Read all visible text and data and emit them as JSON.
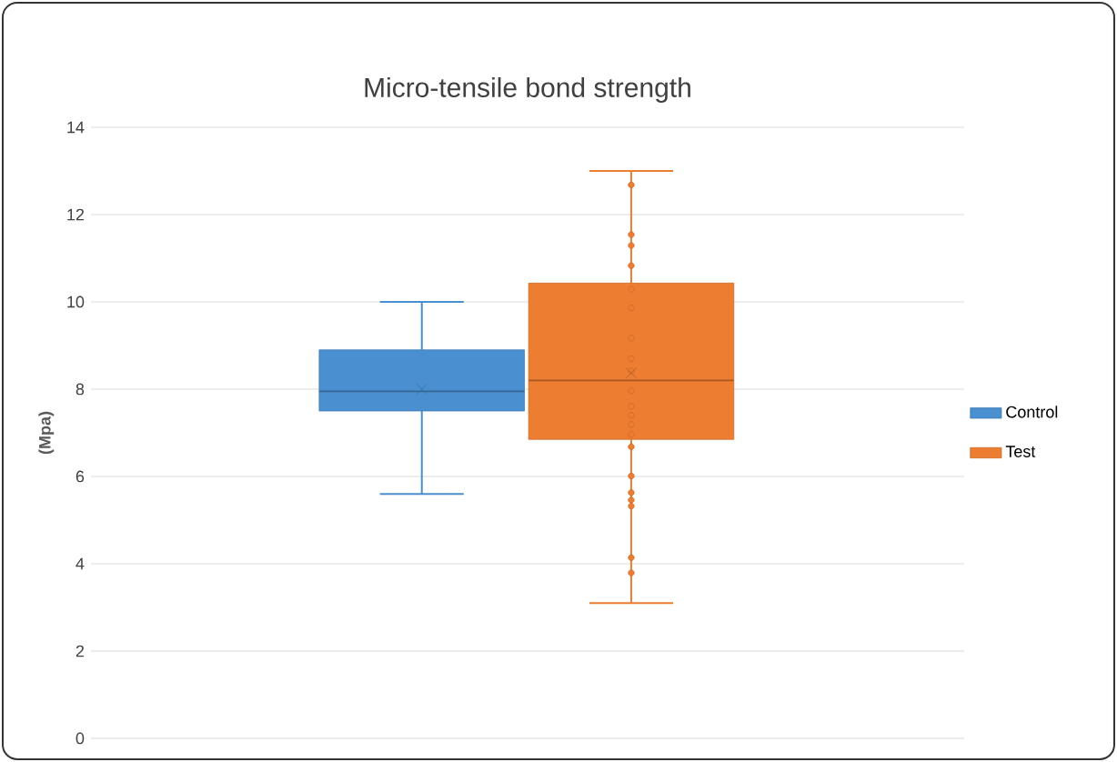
{
  "chart_data": {
    "type": "box",
    "title": "Micro-tensile bond strength",
    "ylabel": "(Mpa)",
    "categories": [
      null
    ],
    "ylim": [
      0,
      14
    ],
    "yticks": [
      0,
      2,
      4,
      6,
      8,
      10,
      12,
      14
    ],
    "grid": "y",
    "legend": "right",
    "tick_labels": "y",
    "series": [
      {
        "name": "Control",
        "color": "#4a8fd0",
        "boxes": [
          {
            "low": 5.6,
            "q1": 7.5,
            "median": 7.95,
            "q3": 8.9,
            "high": 10.0,
            "mean": 8.0
          }
        ]
      },
      {
        "name": "Test",
        "color": "#ed7d31",
        "boxes": [
          {
            "low": 3.1,
            "q1": 6.85,
            "median": 8.2,
            "q3": 10.43,
            "high": 13.0,
            "mean": 8.37,
            "outliers": [
              12.68,
              11.54,
              11.29,
              10.83,
              10.29,
              9.86,
              9.17,
              8.7,
              8.42,
              7.96,
              7.61,
              7.4,
              7.19,
              6.96,
              6.68,
              6.01,
              5.63,
              5.46,
              5.32,
              4.14,
              3.79
            ]
          }
        ]
      }
    ]
  }
}
